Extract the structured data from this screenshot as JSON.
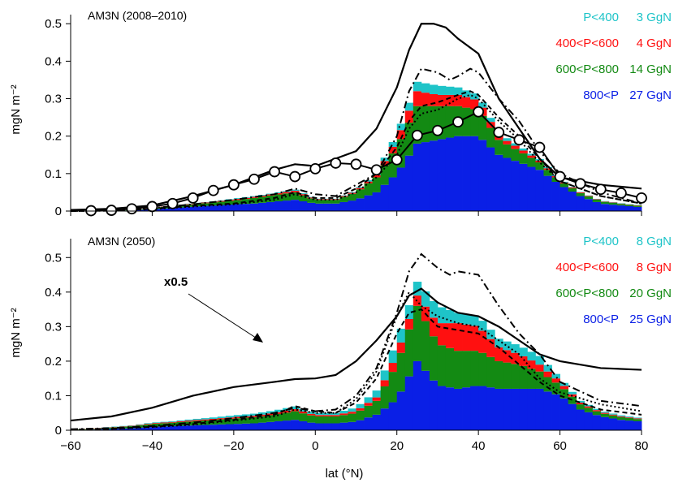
{
  "chart_data": [
    {
      "type": "area",
      "panel_title": "AM3N (2008–2010)",
      "xlabel": "lat (°N)",
      "ylabel": "mgN m⁻²",
      "xlim": [
        -60,
        80
      ],
      "ylim": [
        0,
        0.52
      ],
      "xticks": [
        "−60",
        "−40",
        "−20",
        "0",
        "20",
        "40",
        "60",
        "80"
      ],
      "yticks": [
        "0",
        "0.1",
        "0.2",
        "0.3",
        "0.4",
        "0.5"
      ],
      "legend_placement": "top-right",
      "stack_series": [
        {
          "name": "800<P",
          "total": "27 GgN",
          "color": "#0a1fe6"
        },
        {
          "name": "600<P<800",
          "total": "14 GgN",
          "color": "#138a13"
        },
        {
          "name": "400<P<600",
          "total": "4 GgN",
          "color": "#ff1010"
        },
        {
          "name": "P<400",
          "total": "3 GgN",
          "color": "#1ec4c8"
        }
      ],
      "stack_lat": [
        -60,
        -55,
        -50,
        -45,
        -40,
        -35,
        -30,
        -25,
        -20,
        -15,
        -10,
        -5,
        0,
        5,
        10,
        15,
        20,
        25,
        30,
        35,
        40,
        45,
        50,
        55,
        60,
        65,
        70,
        75,
        80
      ],
      "stack_values": {
        "800<P": [
          0,
          0,
          0,
          0.002,
          0.005,
          0.008,
          0.012,
          0.015,
          0.018,
          0.02,
          0.025,
          0.03,
          0.02,
          0.02,
          0.03,
          0.05,
          0.1,
          0.18,
          0.19,
          0.2,
          0.2,
          0.15,
          0.13,
          0.11,
          0.07,
          0.04,
          0.02,
          0.015,
          0.01
        ],
        "600<P<800": [
          0,
          0,
          0,
          0.001,
          0.003,
          0.005,
          0.006,
          0.008,
          0.01,
          0.015,
          0.018,
          0.02,
          0.01,
          0.01,
          0.02,
          0.04,
          0.07,
          0.1,
          0.09,
          0.08,
          0.07,
          0.04,
          0.03,
          0.02,
          0.01,
          0.008,
          0.006,
          0.004,
          0.003
        ],
        "400<P<600": [
          0,
          0,
          0,
          0,
          0.001,
          0.001,
          0.002,
          0.002,
          0.003,
          0.003,
          0.003,
          0.004,
          0.002,
          0.002,
          0.003,
          0.006,
          0.02,
          0.04,
          0.03,
          0.03,
          0.025,
          0.01,
          0.008,
          0.005,
          0.003,
          0.002,
          0.001,
          0.001,
          0.001
        ],
        "P<400": [
          0,
          0,
          0,
          0,
          0,
          0.001,
          0.001,
          0.001,
          0.002,
          0.002,
          0.002,
          0.003,
          0.001,
          0.001,
          0.002,
          0.005,
          0.015,
          0.025,
          0.025,
          0.02,
          0.015,
          0.008,
          0.006,
          0.004,
          0.002,
          0.001,
          0.001,
          0.001,
          0.001
        ]
      },
      "line_series": [
        {
          "style": "solid",
          "lat": [
            -60,
            -50,
            -40,
            -30,
            -20,
            -10,
            -5,
            0,
            5,
            10,
            15,
            20,
            23,
            26,
            29,
            32,
            35,
            40,
            45,
            50,
            55,
            60,
            70,
            80
          ],
          "values": [
            0.003,
            0.006,
            0.015,
            0.04,
            0.07,
            0.11,
            0.125,
            0.12,
            0.14,
            0.16,
            0.22,
            0.33,
            0.43,
            0.5,
            0.5,
            0.49,
            0.46,
            0.42,
            0.3,
            0.22,
            0.14,
            0.09,
            0.07,
            0.06
          ]
        },
        {
          "style": "dash-dot",
          "lat": [
            -60,
            -50,
            -40,
            -30,
            -20,
            -10,
            -5,
            0,
            5,
            10,
            15,
            20,
            23,
            26,
            30,
            33,
            35,
            38,
            40,
            45,
            50,
            55,
            60,
            70,
            80
          ],
          "values": [
            0,
            0.002,
            0.008,
            0.018,
            0.03,
            0.045,
            0.06,
            0.045,
            0.04,
            0.07,
            0.1,
            0.2,
            0.32,
            0.38,
            0.37,
            0.35,
            0.36,
            0.38,
            0.37,
            0.3,
            0.24,
            0.16,
            0.1,
            0.05,
            0.02
          ]
        },
        {
          "style": "dashed",
          "lat": [
            -60,
            -50,
            -40,
            -30,
            -20,
            -10,
            -5,
            0,
            5,
            10,
            15,
            20,
            23,
            26,
            30,
            35,
            38,
            40,
            45,
            50,
            55,
            60,
            70,
            80
          ],
          "values": [
            0,
            0.001,
            0.006,
            0.014,
            0.02,
            0.035,
            0.05,
            0.035,
            0.035,
            0.06,
            0.1,
            0.17,
            0.24,
            0.28,
            0.29,
            0.31,
            0.32,
            0.31,
            0.25,
            0.2,
            0.14,
            0.08,
            0.04,
            0.02
          ]
        },
        {
          "style": "dotted",
          "lat": [
            -60,
            -50,
            -40,
            -30,
            -20,
            -10,
            -5,
            0,
            5,
            10,
            15,
            20,
            23,
            26,
            30,
            35,
            38,
            40,
            45,
            50,
            55,
            60,
            70,
            80
          ],
          "values": [
            0,
            0.001,
            0.005,
            0.012,
            0.018,
            0.03,
            0.045,
            0.03,
            0.03,
            0.05,
            0.09,
            0.15,
            0.22,
            0.26,
            0.27,
            0.3,
            0.31,
            0.3,
            0.24,
            0.19,
            0.13,
            0.08,
            0.04,
            0.02
          ]
        }
      ],
      "observations": {
        "lat": [
          -55,
          -50,
          -45,
          -40,
          -35,
          -30,
          -25,
          -20,
          -15,
          -10,
          -5,
          0,
          5,
          10,
          15,
          20,
          25,
          30,
          35,
          40,
          45,
          50,
          55,
          60,
          65,
          70,
          75,
          80
        ],
        "values": [
          0.001,
          0.002,
          0.006,
          0.012,
          0.02,
          0.035,
          0.055,
          0.07,
          0.085,
          0.105,
          0.092,
          0.113,
          0.128,
          0.125,
          0.11,
          0.137,
          0.202,
          0.215,
          0.238,
          0.265,
          0.21,
          0.19,
          0.17,
          0.092,
          0.073,
          0.058,
          0.048,
          0.035
        ]
      }
    },
    {
      "type": "area",
      "panel_title": "AM3N (2050)",
      "xlabel": "lat (°N)",
      "ylabel": "mgN m⁻²",
      "xlim": [
        -60,
        80
      ],
      "ylim": [
        0,
        0.55
      ],
      "xticks": [
        "−60",
        "−40",
        "−20",
        "0",
        "20",
        "40",
        "60",
        "80"
      ],
      "yticks": [
        "0",
        "0.1",
        "0.2",
        "0.3",
        "0.4",
        "0.5"
      ],
      "legend_placement": "top-right",
      "annotation": "x0.5",
      "stack_series": [
        {
          "name": "800<P",
          "total": "25 GgN",
          "color": "#0a1fe6"
        },
        {
          "name": "600<P<800",
          "total": "20 GgN",
          "color": "#138a13"
        },
        {
          "name": "400<P<600",
          "total": "8 GgN",
          "color": "#ff1010"
        },
        {
          "name": "P<400",
          "total": "8 GgN",
          "color": "#1ec4c8"
        }
      ],
      "stack_lat": [
        -60,
        -55,
        -50,
        -45,
        -40,
        -35,
        -30,
        -25,
        -20,
        -15,
        -10,
        -5,
        0,
        5,
        10,
        15,
        20,
        25,
        30,
        35,
        40,
        45,
        50,
        55,
        60,
        65,
        70,
        75,
        80
      ],
      "stack_values": {
        "800<P": [
          0.001,
          0.002,
          0.004,
          0.006,
          0.01,
          0.012,
          0.014,
          0.016,
          0.018,
          0.02,
          0.025,
          0.03,
          0.02,
          0.02,
          0.025,
          0.045,
          0.09,
          0.2,
          0.13,
          0.12,
          0.13,
          0.12,
          0.12,
          0.12,
          0.1,
          0.06,
          0.04,
          0.03,
          0.025
        ],
        "600<P<800": [
          0.001,
          0.002,
          0.004,
          0.006,
          0.008,
          0.01,
          0.012,
          0.014,
          0.016,
          0.018,
          0.02,
          0.025,
          0.02,
          0.02,
          0.025,
          0.04,
          0.1,
          0.16,
          0.12,
          0.11,
          0.1,
          0.08,
          0.07,
          0.05,
          0.03,
          0.015,
          0.01,
          0.008,
          0.006
        ],
        "400<P<600": [
          0,
          0.001,
          0.001,
          0.001,
          0.002,
          0.002,
          0.003,
          0.003,
          0.004,
          0.004,
          0.005,
          0.006,
          0.004,
          0.004,
          0.006,
          0.01,
          0.03,
          0.03,
          0.06,
          0.08,
          0.07,
          0.04,
          0.03,
          0.02,
          0.01,
          0.005,
          0.003,
          0.002,
          0.002
        ],
        "P<400": [
          0,
          0,
          0.001,
          0.001,
          0.002,
          0.002,
          0.003,
          0.004,
          0.005,
          0.006,
          0.007,
          0.008,
          0.006,
          0.006,
          0.01,
          0.02,
          0.04,
          0.04,
          0.05,
          0.03,
          0.03,
          0.025,
          0.025,
          0.025,
          0.01,
          0.005,
          0.003,
          0.003,
          0.002
        ]
      },
      "line_series": [
        {
          "style": "solid",
          "lat": [
            -60,
            -50,
            -40,
            -30,
            -20,
            -10,
            -5,
            0,
            5,
            10,
            15,
            20,
            23,
            26,
            30,
            35,
            40,
            45,
            50,
            55,
            60,
            70,
            80
          ],
          "values": [
            0.028,
            0.04,
            0.065,
            0.1,
            0.125,
            0.14,
            0.148,
            0.15,
            0.16,
            0.2,
            0.26,
            0.33,
            0.39,
            0.41,
            0.37,
            0.34,
            0.33,
            0.3,
            0.26,
            0.22,
            0.2,
            0.18,
            0.175
          ]
        },
        {
          "style": "dash-dot",
          "lat": [
            -60,
            -50,
            -40,
            -30,
            -20,
            -10,
            -5,
            0,
            5,
            10,
            15,
            20,
            23,
            26,
            30,
            33,
            35,
            40,
            45,
            50,
            55,
            60,
            70,
            80
          ],
          "values": [
            0.003,
            0.006,
            0.012,
            0.022,
            0.035,
            0.05,
            0.065,
            0.055,
            0.06,
            0.1,
            0.18,
            0.34,
            0.46,
            0.51,
            0.47,
            0.45,
            0.46,
            0.45,
            0.36,
            0.28,
            0.22,
            0.14,
            0.085,
            0.07
          ]
        },
        {
          "style": "dashed",
          "lat": [
            -60,
            -50,
            -40,
            -30,
            -20,
            -10,
            -5,
            0,
            5,
            10,
            15,
            20,
            23,
            26,
            30,
            35,
            40,
            45,
            50,
            55,
            60,
            70,
            80
          ],
          "values": [
            0.002,
            0.004,
            0.01,
            0.018,
            0.03,
            0.045,
            0.07,
            0.055,
            0.05,
            0.08,
            0.15,
            0.28,
            0.34,
            0.35,
            0.3,
            0.29,
            0.28,
            0.24,
            0.19,
            0.14,
            0.1,
            0.06,
            0.045
          ]
        },
        {
          "style": "dotted",
          "lat": [
            -60,
            -50,
            -40,
            -30,
            -20,
            -10,
            -5,
            0,
            5,
            10,
            15,
            20,
            23,
            26,
            30,
            35,
            40,
            45,
            50,
            55,
            60,
            70,
            80
          ],
          "values": [
            0.002,
            0.004,
            0.009,
            0.016,
            0.028,
            0.04,
            0.06,
            0.05,
            0.05,
            0.09,
            0.17,
            0.33,
            0.4,
            0.36,
            0.33,
            0.31,
            0.3,
            0.26,
            0.22,
            0.15,
            0.11,
            0.075,
            0.055
          ]
        }
      ]
    }
  ]
}
